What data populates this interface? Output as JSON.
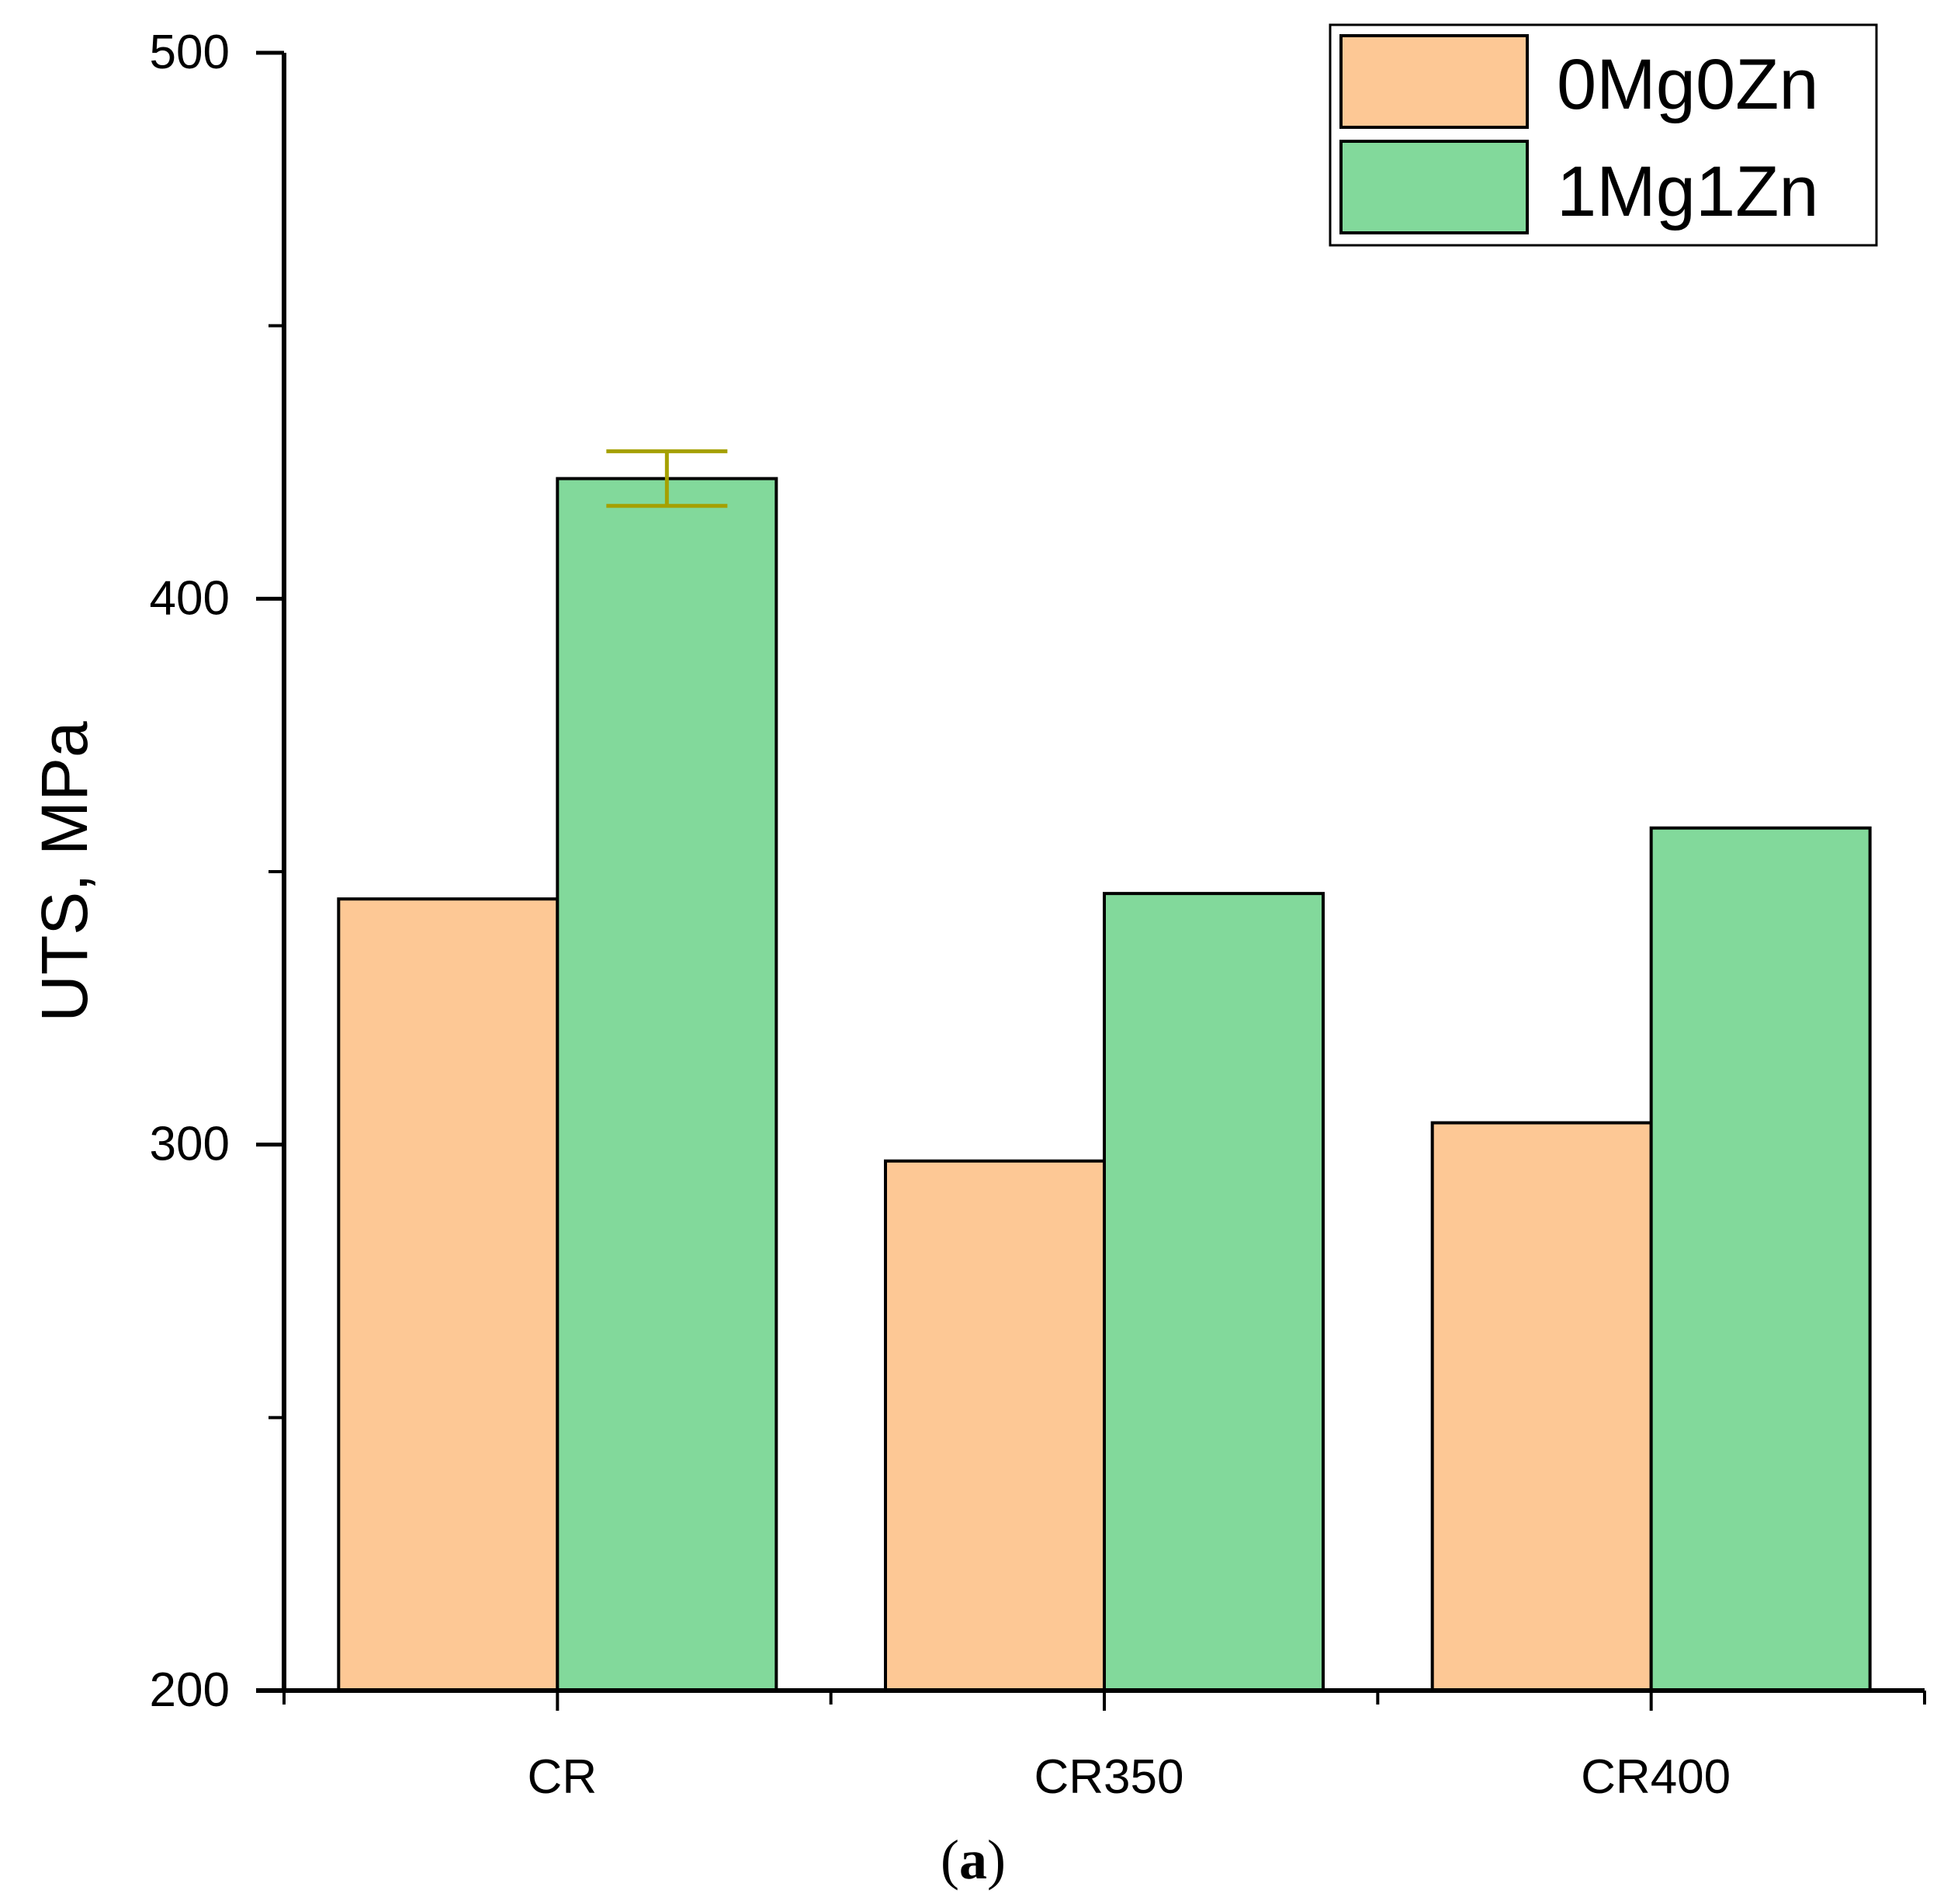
{
  "chart_data": {
    "type": "bar",
    "categories": [
      "CR",
      "CR350",
      "CR400"
    ],
    "series": [
      {
        "name": "0Mg0Zn",
        "values": [
          345,
          297,
          304
        ],
        "color": "#fdc895"
      },
      {
        "name": "1Mg1Zn",
        "values": [
          422,
          346,
          358
        ],
        "color": "#82d99b",
        "error": [
          5,
          null,
          null
        ]
      }
    ],
    "ylabel": "UTS, MPa",
    "xlabel": "",
    "ylim": [
      200,
      500
    ],
    "y_ticks": [
      "200",
      "300",
      "400",
      "500"
    ],
    "error_bar_color": "#a5a000",
    "legend_position": "top-right",
    "grid": false
  },
  "caption": {
    "open": "(",
    "letter": "a",
    "close": ")"
  }
}
